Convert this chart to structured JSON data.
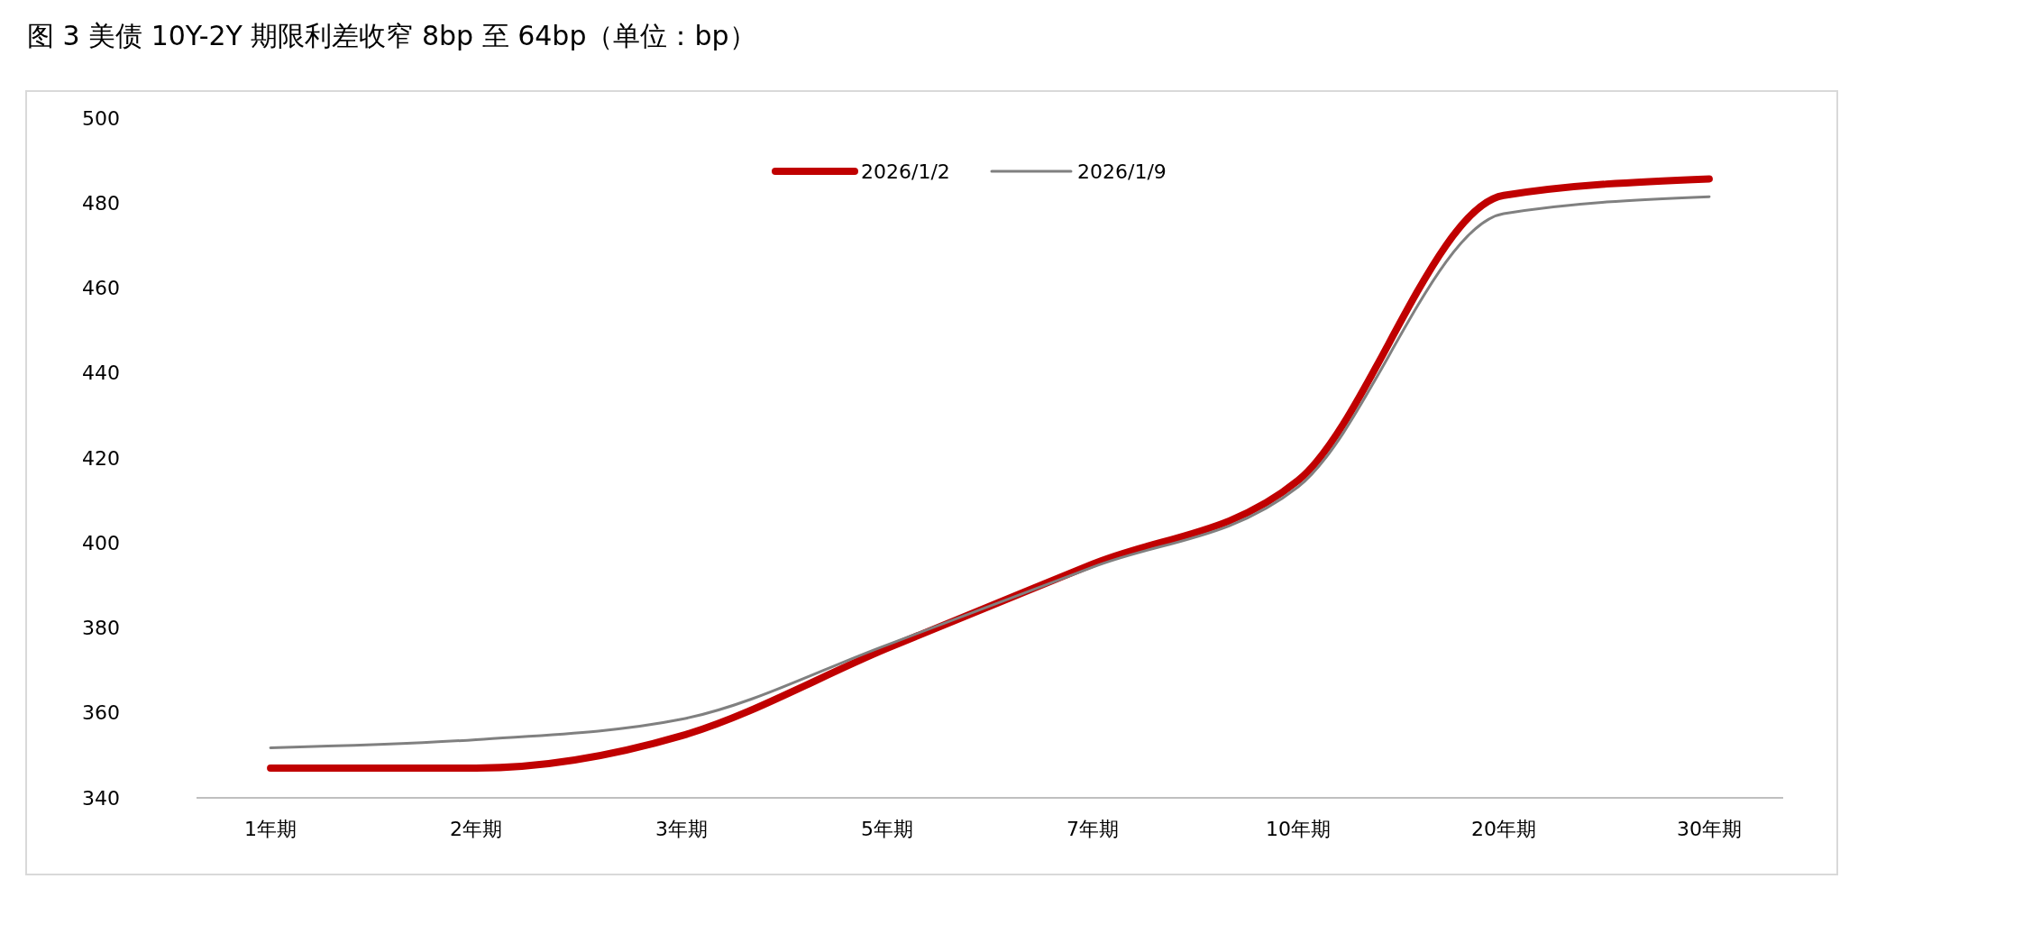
{
  "chart_data": {
    "type": "line",
    "title": "图 3 美债 10Y-2Y 期限利差收窄 8bp 至 64bp（单位：bp）",
    "categories": [
      "1年期",
      "2年期",
      "3年期",
      "5年期",
      "7年期",
      "10年期",
      "20年期",
      "30年期"
    ],
    "series": [
      {
        "name": "2026/1/2",
        "color": "#c00000",
        "values": [
          347,
          347,
          354.6,
          375.2,
          395,
          414.7,
          481.8,
          485.7
        ]
      },
      {
        "name": "2026/1/9",
        "color": "#808080",
        "values": [
          351.8,
          353.7,
          358.5,
          376,
          394.3,
          413.2,
          477.5,
          481.5
        ]
      }
    ],
    "ylim": [
      340,
      500
    ],
    "yticks": [
      340,
      360,
      380,
      400,
      420,
      440,
      460,
      480,
      500
    ],
    "grid": false,
    "legend": "top",
    "marker": "none",
    "line_style": "solid"
  }
}
